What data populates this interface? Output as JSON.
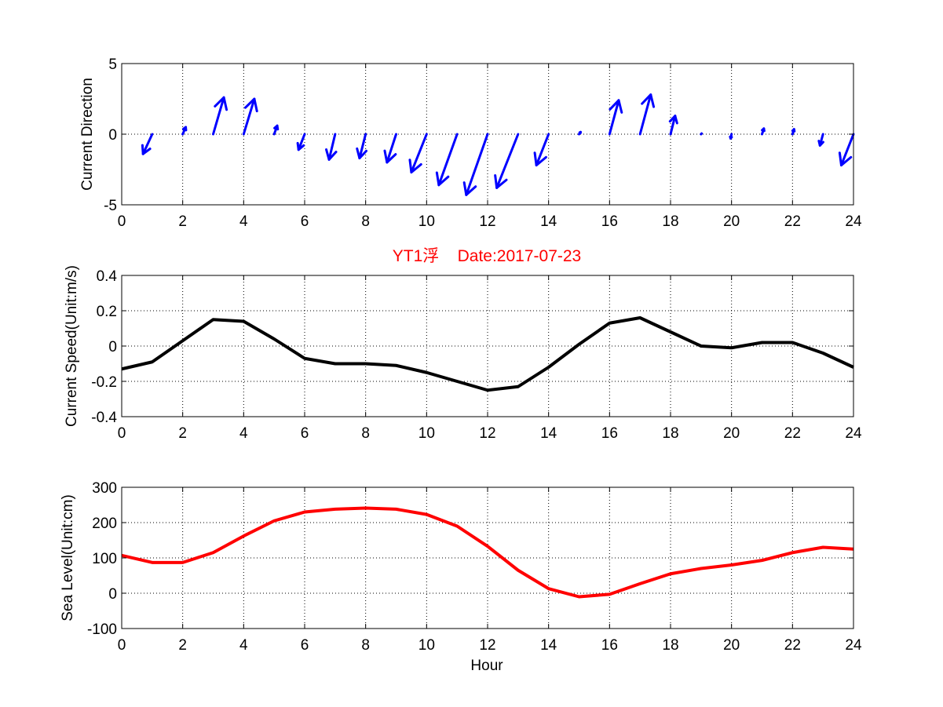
{
  "figure": {
    "title": "YT1浮    Date:2017-07-23",
    "title_color": "#ff0000",
    "background": "#ffffff"
  },
  "chart_data": [
    {
      "type": "quiver",
      "title": "",
      "xlabel": "",
      "ylabel": "Current Direction",
      "xlim": [
        0,
        24
      ],
      "ylim": [
        -5,
        5
      ],
      "xticks": [
        "0",
        "2",
        "4",
        "6",
        "8",
        "10",
        "12",
        "14",
        "16",
        "18",
        "20",
        "22",
        "24"
      ],
      "yticks": [
        "-5",
        "0",
        "5"
      ],
      "grid": true,
      "color": "#0000ff",
      "x": [
        1,
        2,
        3,
        4,
        5,
        6,
        7,
        8,
        9,
        10,
        11,
        12,
        13,
        14,
        15,
        16,
        17,
        18,
        19,
        20,
        21,
        22,
        23,
        24
      ],
      "u": [
        -0.3,
        0.1,
        0.35,
        0.35,
        0.1,
        -0.2,
        -0.2,
        -0.2,
        -0.3,
        -0.5,
        -0.6,
        -0.7,
        -0.7,
        -0.4,
        0.05,
        0.3,
        0.35,
        0.15,
        0.02,
        -0.03,
        0.06,
        0.05,
        -0.1,
        -0.4
      ],
      "v": [
        -1.4,
        0.5,
        2.6,
        2.5,
        0.6,
        -1.1,
        -1.8,
        -1.7,
        -2.0,
        -2.7,
        -3.6,
        -4.3,
        -3.8,
        -2.2,
        0.15,
        2.4,
        2.8,
        1.3,
        0.05,
        -0.3,
        0.4,
        0.35,
        -0.8,
        -2.2
      ]
    },
    {
      "type": "line",
      "title": "",
      "xlabel": "",
      "ylabel": "Current Speed(Unit:m/s)",
      "xlim": [
        0,
        24
      ],
      "ylim": [
        -0.4,
        0.4
      ],
      "xticks": [
        "0",
        "2",
        "4",
        "6",
        "8",
        "10",
        "12",
        "14",
        "16",
        "18",
        "20",
        "22",
        "24"
      ],
      "yticks": [
        "-0.4",
        "-0.2",
        "0",
        "0.2",
        "0.4"
      ],
      "grid": true,
      "color": "#000000",
      "x": [
        0,
        1,
        2,
        3,
        4,
        5,
        6,
        7,
        8,
        9,
        10,
        11,
        12,
        13,
        14,
        15,
        16,
        17,
        18,
        19,
        20,
        21,
        22,
        23,
        24
      ],
      "y": [
        -0.13,
        -0.09,
        0.03,
        0.15,
        0.14,
        0.04,
        -0.07,
        -0.1,
        -0.1,
        -0.11,
        -0.15,
        -0.2,
        -0.25,
        -0.23,
        -0.12,
        0.01,
        0.13,
        0.16,
        0.08,
        0.0,
        -0.01,
        0.02,
        0.02,
        -0.04,
        -0.12
      ]
    },
    {
      "type": "line",
      "title": "",
      "xlabel": "Hour",
      "ylabel": "Sea Level(Unit:cm)",
      "xlim": [
        0,
        24
      ],
      "ylim": [
        -100,
        300
      ],
      "xticks": [
        "0",
        "2",
        "4",
        "6",
        "8",
        "10",
        "12",
        "14",
        "16",
        "18",
        "20",
        "22",
        "24"
      ],
      "yticks": [
        "-100",
        "0",
        "100",
        "200",
        "300"
      ],
      "grid": true,
      "color": "#ff0000",
      "x": [
        0,
        1,
        2,
        3,
        4,
        5,
        6,
        7,
        8,
        9,
        10,
        11,
        12,
        13,
        14,
        15,
        16,
        17,
        18,
        19,
        20,
        21,
        22,
        23,
        24
      ],
      "y": [
        107,
        87,
        87,
        115,
        162,
        205,
        230,
        238,
        241,
        238,
        223,
        190,
        133,
        65,
        13,
        -10,
        -3,
        27,
        55,
        70,
        80,
        93,
        115,
        130,
        125
      ]
    }
  ]
}
